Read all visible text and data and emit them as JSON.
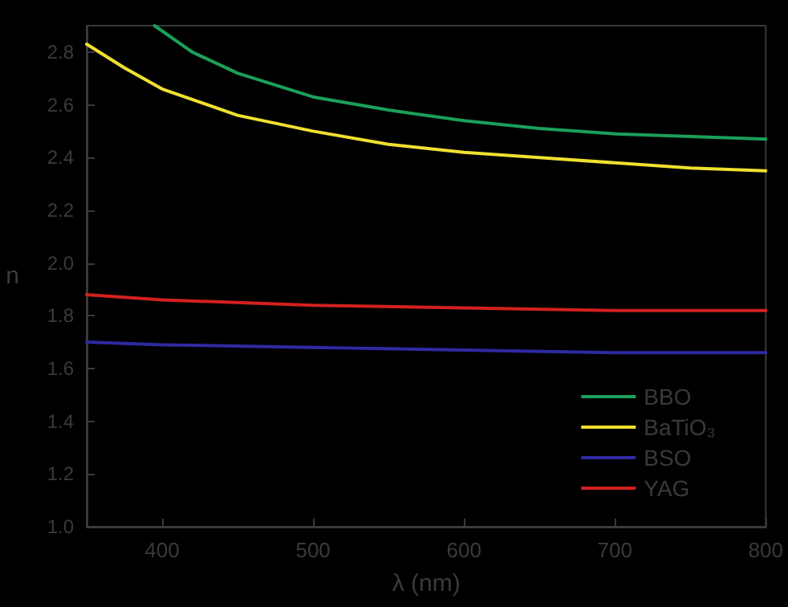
{
  "chart_data": {
    "type": "line",
    "xlabel": "λ (nm)",
    "ylabel": "n",
    "xlim": [
      350,
      800
    ],
    "xticks": [
      400,
      500,
      600,
      700,
      800
    ],
    "ylim": [
      1.0,
      2.9
    ],
    "yticks": [
      {
        "value": 1.0,
        "label": "1.0"
      },
      {
        "value": 1.2,
        "label": "1.2"
      },
      {
        "value": 1.4,
        "label": "1.4"
      },
      {
        "value": 1.6,
        "label": "1.6"
      },
      {
        "value": 1.8,
        "label": "1.8"
      },
      {
        "value": 2.0,
        "label": "2.0"
      },
      {
        "value": 2.2,
        "label": "2.2"
      },
      {
        "value": 2.4,
        "label": "2.4"
      },
      {
        "value": 2.6,
        "label": "2.6"
      },
      {
        "value": 2.8,
        "label": "2.8"
      }
    ],
    "grid": false,
    "legend": "bottom right",
    "marker": "none",
    "line_style": "solid",
    "series": [
      {
        "name": "BBO",
        "color": "#1aa05a",
        "x": [
          395,
          420,
          450,
          500,
          550,
          600,
          650,
          700,
          750,
          800
        ],
        "values": [
          2.9,
          2.8,
          2.72,
          2.63,
          2.58,
          2.54,
          2.51,
          2.49,
          2.48,
          2.47
        ]
      },
      {
        "name": "BaTiO₃",
        "color": "#f0e030",
        "x": [
          350,
          375,
          400,
          450,
          500,
          550,
          600,
          650,
          700,
          750,
          800
        ],
        "values": [
          2.83,
          2.74,
          2.66,
          2.56,
          2.5,
          2.45,
          2.42,
          2.4,
          2.38,
          2.36,
          2.35
        ]
      },
      {
        "name": "BSO",
        "color": "#2e2aa0",
        "x": [
          350,
          400,
          500,
          600,
          700,
          800
        ],
        "values": [
          1.7,
          1.69,
          1.68,
          1.67,
          1.66,
          1.66
        ]
      },
      {
        "name": "YAG",
        "color": "#d42020",
        "x": [
          350,
          400,
          500,
          600,
          700,
          800
        ],
        "values": [
          1.88,
          1.86,
          1.84,
          1.83,
          1.82,
          1.82
        ]
      }
    ]
  }
}
